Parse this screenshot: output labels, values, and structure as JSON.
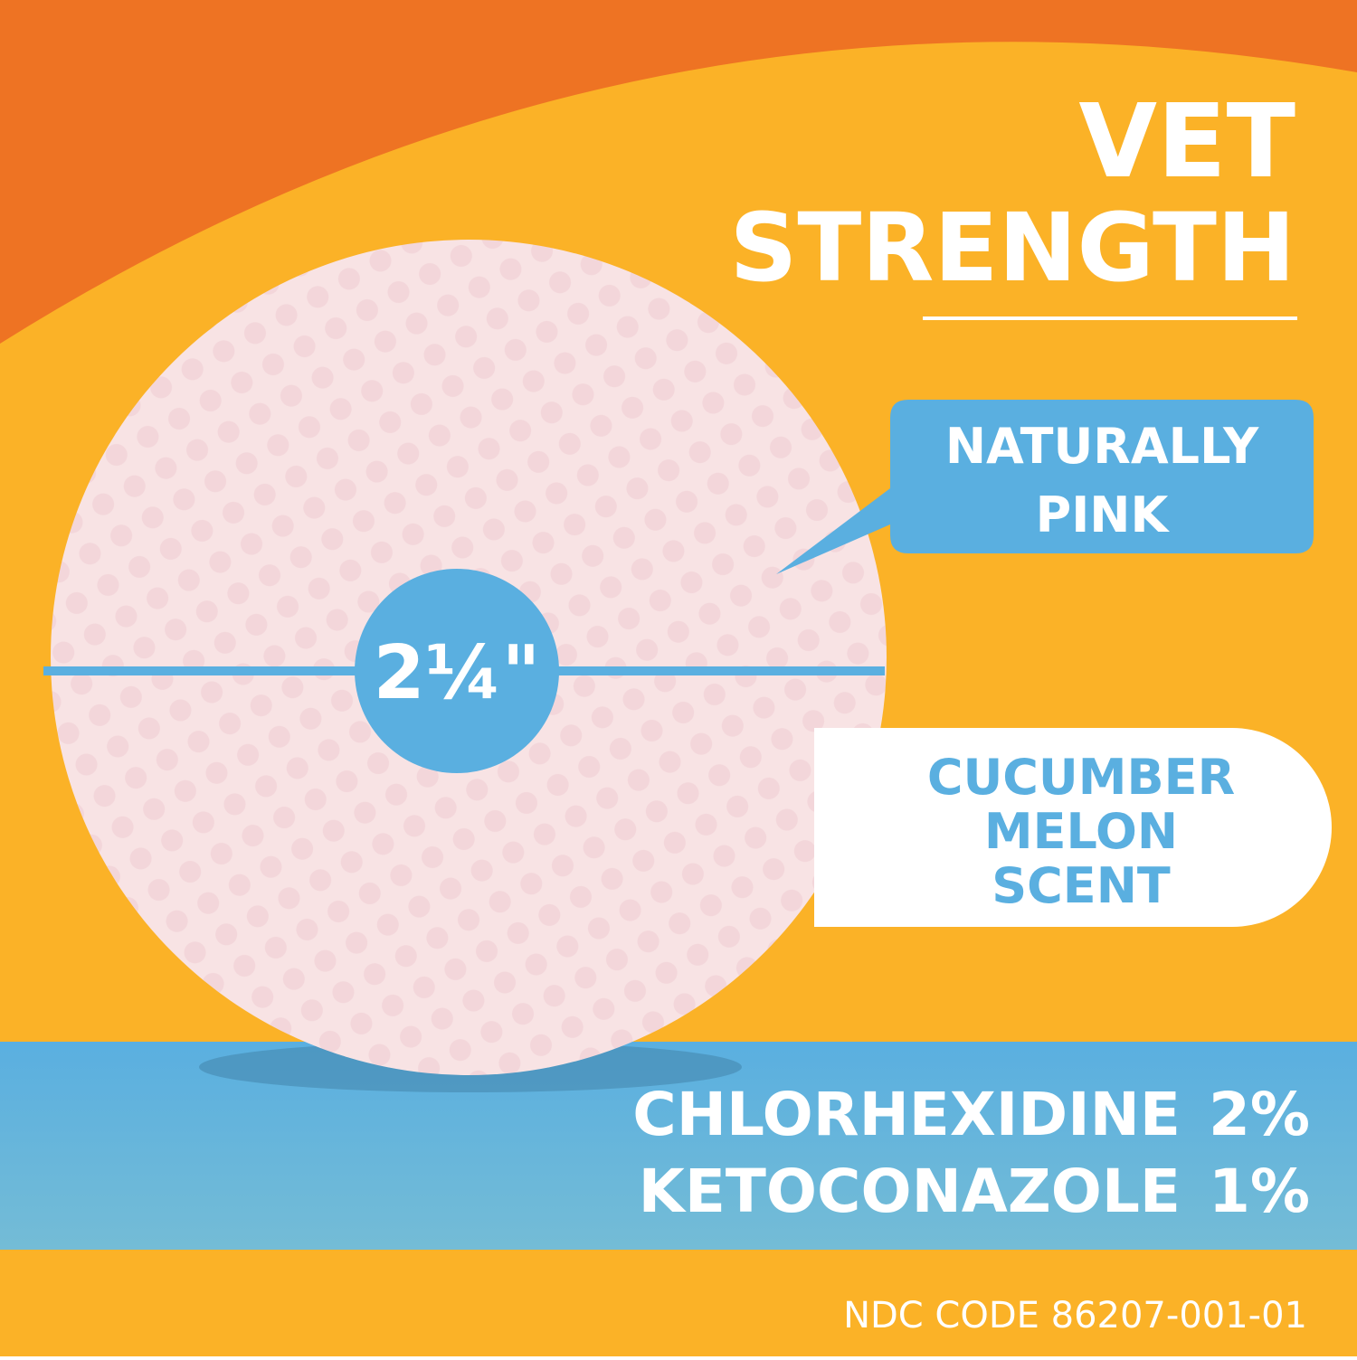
{
  "headline": {
    "line1": "VET",
    "line2": "STRENGTH"
  },
  "callouts": {
    "color": {
      "line1": "NATURALLY",
      "line2": "PINK"
    },
    "scent": {
      "line1": "CUCUMBER",
      "line2": "MELON",
      "line3": "SCENT"
    }
  },
  "size": "2¼\"",
  "ingredients": [
    {
      "name": "CHLORHEXIDINE",
      "amount": "2%"
    },
    {
      "name": "KETOCONAZOLE",
      "amount": "1%"
    }
  ],
  "footer": "NDC CODE 86207-001-01"
}
